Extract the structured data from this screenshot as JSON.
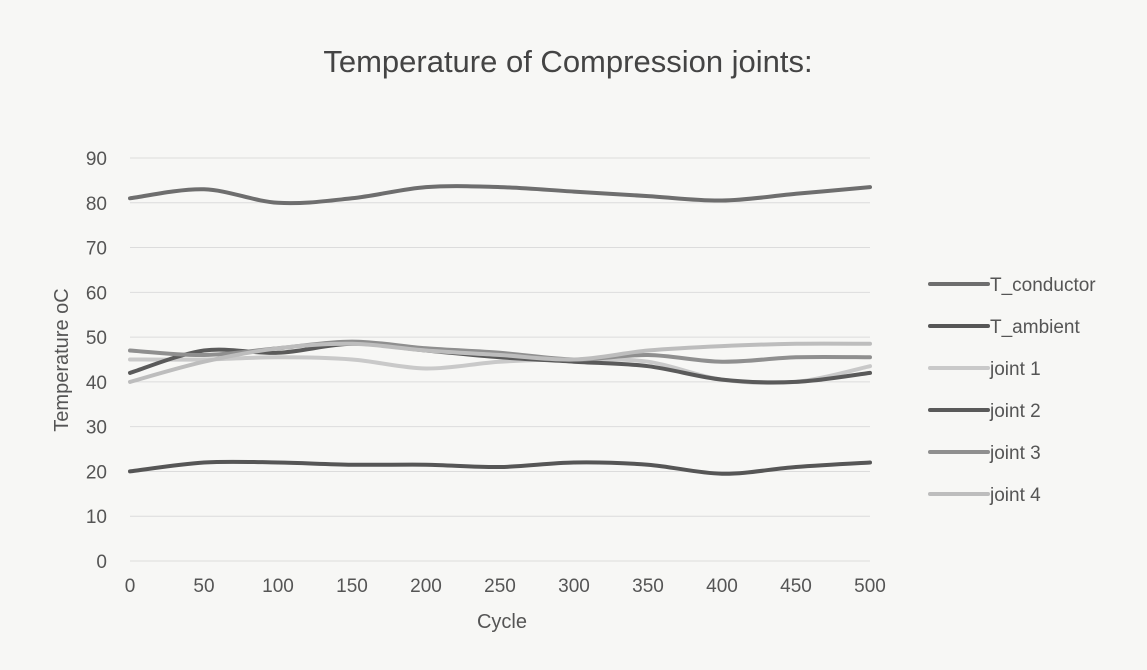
{
  "chart_data": {
    "type": "line",
    "title": "Temperature of Compression joints:",
    "xlabel": "Cycle",
    "ylabel": "Temperature oC",
    "x": [
      0,
      50,
      100,
      150,
      200,
      250,
      300,
      350,
      400,
      450,
      500
    ],
    "x_tick_labels": [
      "0",
      "50",
      "100",
      "150",
      "200",
      "250",
      "300",
      "350",
      "400",
      "450",
      "500"
    ],
    "y_tick_labels": [
      "0",
      "10",
      "20",
      "30",
      "40",
      "50",
      "60",
      "70",
      "80",
      "90"
    ],
    "xlim": [
      0,
      500
    ],
    "ylim": [
      0,
      90
    ],
    "grid": true,
    "legend_position": "right",
    "series": [
      {
        "name": "T_conductor",
        "color": "#6e6e6e",
        "values": [
          81,
          83,
          80,
          81,
          83.5,
          83.5,
          82.5,
          81.5,
          80.5,
          82,
          83.5
        ]
      },
      {
        "name": "T_ambient",
        "color": "#565656",
        "values": [
          20,
          22,
          22,
          21.5,
          21.5,
          21,
          22,
          21.5,
          19.5,
          21,
          22
        ]
      },
      {
        "name": "joint 1",
        "color": "#c9c9c9",
        "values": [
          45,
          45,
          45.5,
          45,
          43,
          44.5,
          45,
          44.5,
          40.5,
          40,
          43.5
        ]
      },
      {
        "name": "joint 2",
        "color": "#5a5a5a",
        "values": [
          42,
          47,
          46.5,
          48.5,
          47,
          45.5,
          44.5,
          43.5,
          40.5,
          40,
          42
        ]
      },
      {
        "name": "joint 3",
        "color": "#8f8f8f",
        "values": [
          47,
          46,
          47.5,
          49,
          47.5,
          46.5,
          45,
          46,
          44.5,
          45.5,
          45.5
        ]
      },
      {
        "name": "joint 4",
        "color": "#bdbdbd",
        "values": [
          40,
          44.5,
          47.5,
          48.5,
          47,
          46,
          45,
          47,
          48,
          48.5,
          48.5
        ]
      }
    ]
  }
}
